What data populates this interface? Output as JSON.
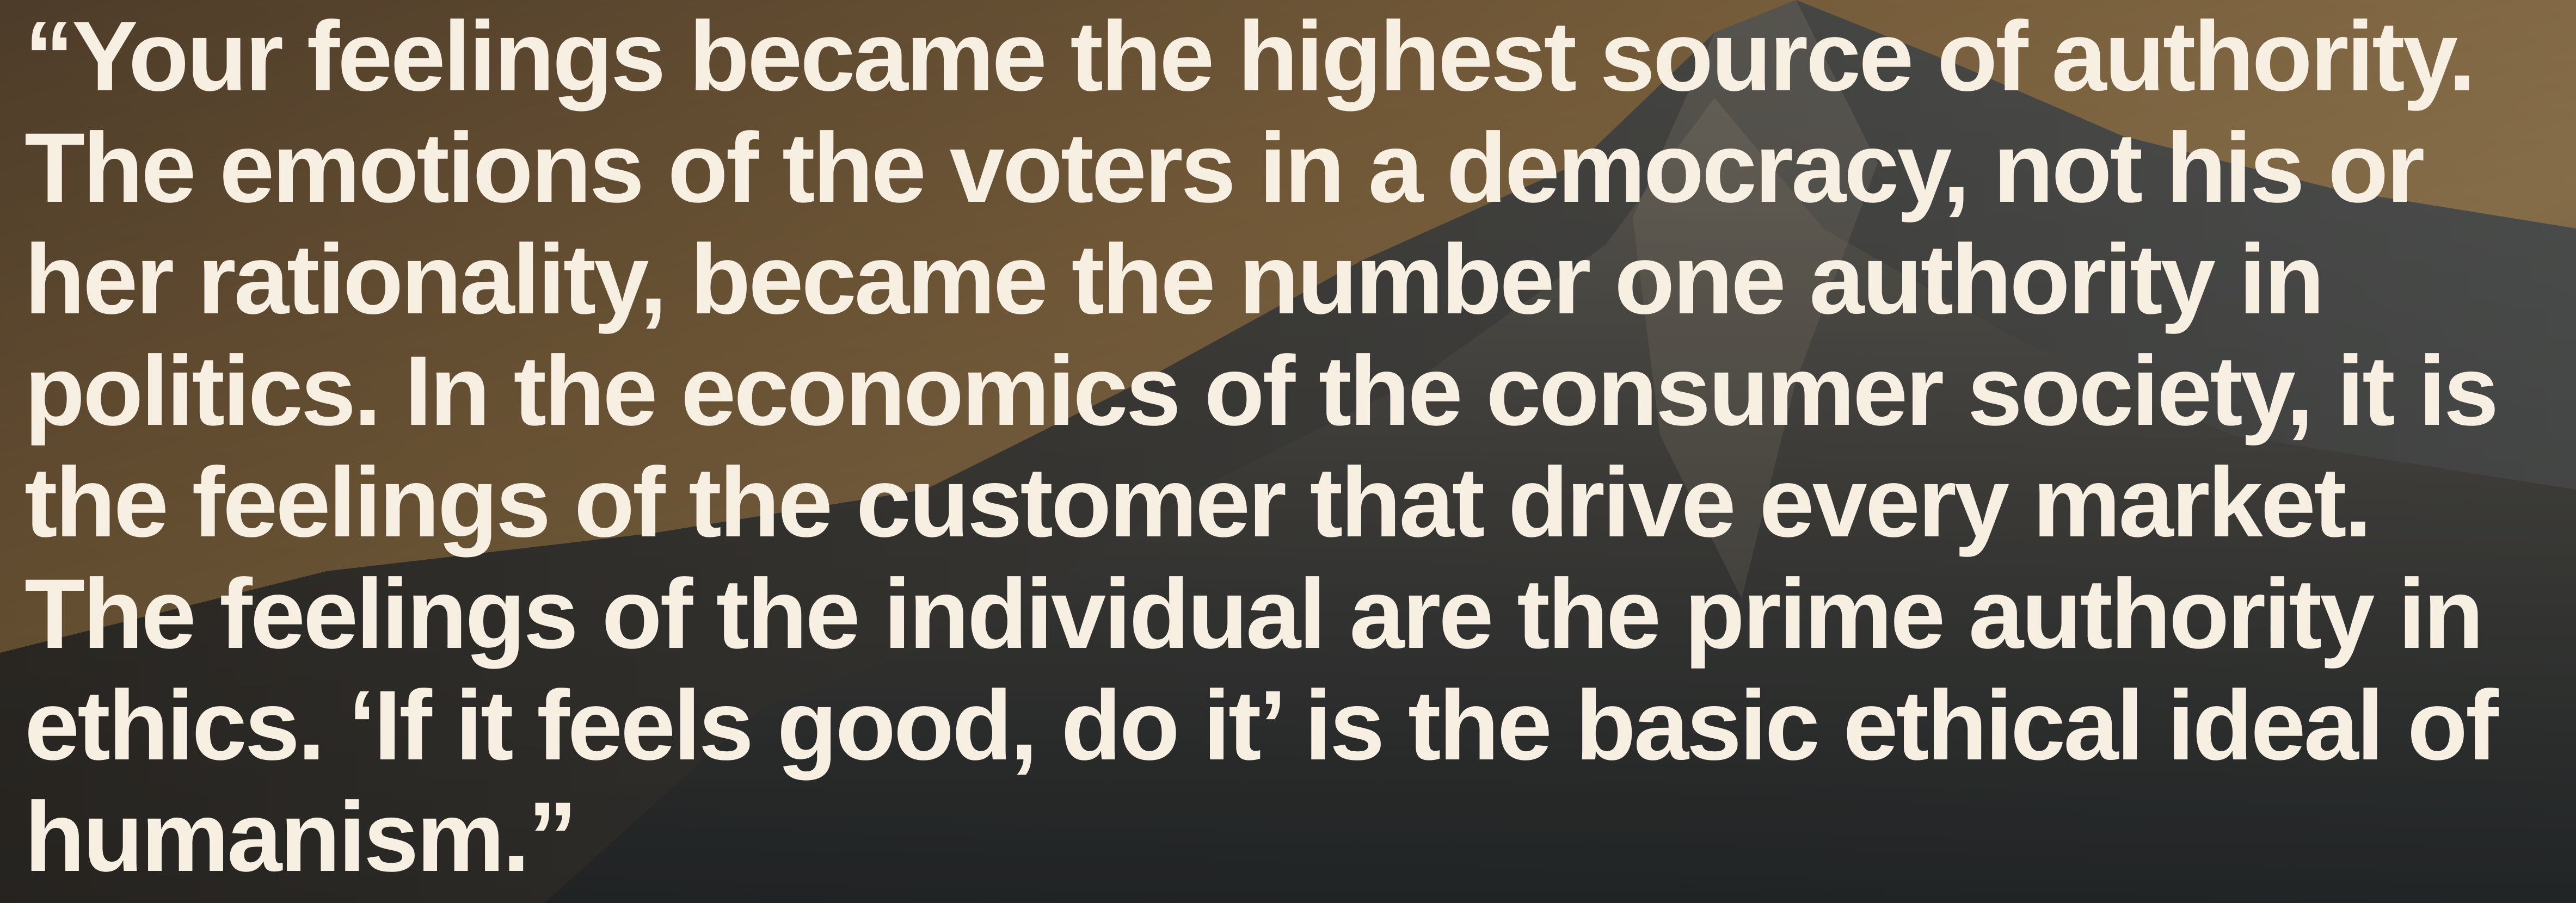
{
  "quote": {
    "lines": [
      "“Your feelings became the highest source of authority.",
      "The emotions of the voters in a democracy, not his or",
      "her rationality, became the number one authority in",
      "politics. In the economics of the consumer society, it is",
      "the feelings of the customer that drive every market.",
      "The feelings of the individual are the prime authority in",
      "ethics. ‘If it feels good, do it’ is the basic ethical ideal of",
      "humanism.”"
    ]
  }
}
